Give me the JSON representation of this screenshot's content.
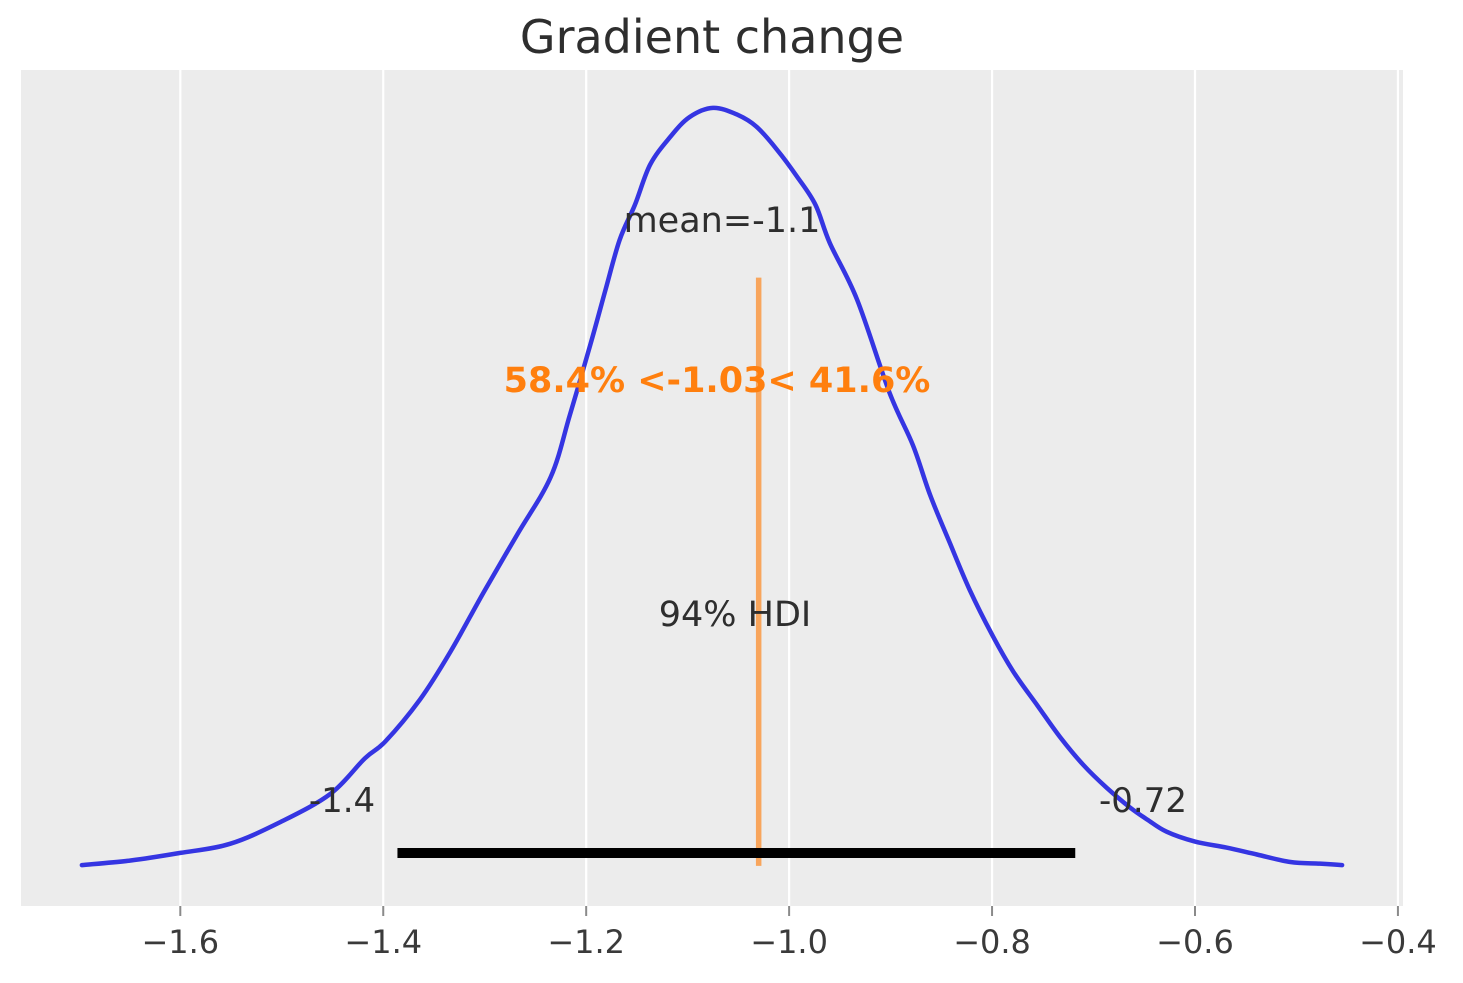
{
  "title": "Gradient change",
  "chart_data": {
    "type": "line",
    "subtype": "kde-posterior-density",
    "title": "Gradient change",
    "xlabel": "",
    "ylabel": "",
    "xlim": [
      -1.757,
      -0.395
    ],
    "ylim_density": [
      -0.053,
      1.05
    ],
    "grid": "vertical white gridlines on gray panel, no axis spines",
    "legend": "none",
    "x_ticks": {
      "values": [
        -1.6,
        -1.4,
        -1.2,
        -1.0,
        -0.8,
        -0.6,
        -0.4
      ],
      "labels": [
        "−1.6",
        "−1.4",
        "−1.2",
        "−1.0",
        "−0.8",
        "−0.6",
        "−0.4"
      ]
    },
    "kde_curve": {
      "points": [
        [
          -1.697,
          0.001
        ],
        [
          -1.649,
          0.007
        ],
        [
          -1.6,
          0.017
        ],
        [
          -1.551,
          0.029
        ],
        [
          -1.501,
          0.058
        ],
        [
          -1.452,
          0.095
        ],
        [
          -1.418,
          0.142
        ],
        [
          -1.398,
          0.164
        ],
        [
          -1.364,
          0.219
        ],
        [
          -1.334,
          0.282
        ],
        [
          -1.301,
          0.361
        ],
        [
          -1.268,
          0.437
        ],
        [
          -1.235,
          0.513
        ],
        [
          -1.216,
          0.595
        ],
        [
          -1.196,
          0.687
        ],
        [
          -1.181,
          0.76
        ],
        [
          -1.167,
          0.826
        ],
        [
          -1.152,
          0.872
        ],
        [
          -1.137,
          0.925
        ],
        [
          -1.117,
          0.962
        ],
        [
          -1.098,
          0.988
        ],
        [
          -1.075,
          1.0
        ],
        [
          -1.051,
          0.991
        ],
        [
          -1.032,
          0.975
        ],
        [
          -1.012,
          0.945
        ],
        [
          -0.992,
          0.909
        ],
        [
          -0.974,
          0.872
        ],
        [
          -0.96,
          0.822
        ],
        [
          -0.933,
          0.747
        ],
        [
          -0.901,
          0.624
        ],
        [
          -0.878,
          0.555
        ],
        [
          -0.861,
          0.489
        ],
        [
          -0.841,
          0.424
        ],
        [
          -0.822,
          0.364
        ],
        [
          -0.8,
          0.305
        ],
        [
          -0.779,
          0.256
        ],
        [
          -0.755,
          0.211
        ],
        [
          -0.733,
          0.17
        ],
        [
          -0.71,
          0.133
        ],
        [
          -0.687,
          0.103
        ],
        [
          -0.664,
          0.077
        ],
        [
          -0.647,
          0.061
        ],
        [
          -0.628,
          0.045
        ],
        [
          -0.6,
          0.032
        ],
        [
          -0.569,
          0.024
        ],
        [
          -0.539,
          0.015
        ],
        [
          -0.506,
          0.005
        ],
        [
          -0.477,
          0.003
        ],
        [
          -0.455,
          0.001
        ]
      ]
    },
    "annotations": {
      "mean": {
        "text": "mean=-1.1",
        "value": -1.1
      },
      "reference": {
        "text": "58.4% <-1.03< 41.6%",
        "value": -1.03,
        "percent_below": 58.4,
        "percent_above": 41.6,
        "line_height_fraction": 0.776
      },
      "hdi": {
        "text": "94% HDI",
        "probability_percent": 94,
        "lower": -1.386,
        "upper": -0.718,
        "lower_text": "-1.4",
        "upper_text": "-0.72"
      }
    },
    "colors": {
      "curve": "#3535e2",
      "reference_line": "#f8a55c",
      "reference_text": "#ff7f0e",
      "hdi_bar": "#000000",
      "plot_background": "#ececec",
      "grid": "#ffffff",
      "tick_mark": "#8a8a8a",
      "text": "#2e2e2e"
    }
  }
}
